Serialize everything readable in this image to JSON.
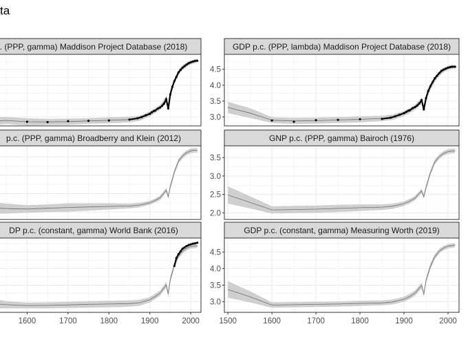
{
  "page": {
    "title_fragment": "ta"
  },
  "chart_data": [
    {
      "type": "line",
      "panel": "left",
      "title": ". (PPP, gamma) Maddison Project Database (2018)",
      "xlim": [
        1500,
        2025
      ],
      "xticks": [
        1600,
        1700,
        1800,
        1900,
        2000
      ],
      "show_xticks": false,
      "ylim": [
        2.72,
        4.97
      ],
      "yticks": [],
      "grid": true,
      "band_x": [
        1500,
        1550,
        1600,
        1650,
        1700,
        1750,
        1800,
        1850,
        1875,
        1900,
        1913,
        1925,
        1940,
        1945,
        1950,
        1960,
        1970,
        1980,
        1990,
        2000,
        2010,
        2016
      ],
      "band_lo": [
        2.74,
        2.78,
        2.74,
        2.75,
        2.76,
        2.79,
        2.8,
        2.83,
        2.88,
        3.02,
        3.12,
        3.22,
        3.48,
        3.18,
        3.62,
        4.05,
        4.32,
        4.48,
        4.58,
        4.65,
        4.69,
        4.7
      ],
      "band_hi": [
        3.0,
        3.0,
        2.96,
        2.94,
        2.95,
        2.96,
        2.99,
        3.01,
        3.04,
        3.18,
        3.28,
        3.38,
        3.66,
        3.36,
        3.8,
        4.22,
        4.48,
        4.63,
        4.72,
        4.78,
        4.82,
        4.83
      ],
      "obs_x": [
        1500,
        1600,
        1650,
        1700,
        1750,
        1800,
        1850,
        1870,
        1880,
        1890,
        1900,
        1905,
        1910,
        1913,
        1920,
        1925,
        1930,
        1935,
        1940,
        1945,
        1950,
        1955,
        1960,
        1965,
        1970,
        1975,
        1980,
        1985,
        1990,
        1995,
        2000,
        2005,
        2010,
        2016
      ],
      "obs_y": [
        2.89,
        2.85,
        2.84,
        2.87,
        2.88,
        2.89,
        2.92,
        2.96,
        3.0,
        3.05,
        3.1,
        3.15,
        3.19,
        3.2,
        3.27,
        3.3,
        3.35,
        3.42,
        3.56,
        3.27,
        3.71,
        3.95,
        4.13,
        4.26,
        4.4,
        4.48,
        4.55,
        4.6,
        4.65,
        4.69,
        4.72,
        4.74,
        4.76,
        4.77
      ]
    },
    {
      "type": "line",
      "panel": "right",
      "title": "GDP p.c. (PPP, lambda) Maddison Project Database (2018)",
      "xlim": [
        1492,
        2025
      ],
      "xticks": [
        1500,
        1600,
        1700,
        1800,
        1900,
        2000
      ],
      "show_xticks": false,
      "ylim": [
        2.72,
        4.97
      ],
      "yticks": [
        3.0,
        3.5,
        4.0,
        4.5
      ],
      "grid": true,
      "band_x": [
        1500,
        1550,
        1600,
        1650,
        1700,
        1750,
        1800,
        1850,
        1875,
        1900,
        1913,
        1925,
        1940,
        1945,
        1950,
        1960,
        1970,
        1980,
        1990,
        2000,
        2010,
        2016
      ],
      "band_lo": [
        3.12,
        2.97,
        2.81,
        2.78,
        2.79,
        2.81,
        2.83,
        2.87,
        2.91,
        3.03,
        3.12,
        3.22,
        3.43,
        3.16,
        3.5,
        3.85,
        4.1,
        4.28,
        4.4,
        4.48,
        4.52,
        4.52
      ],
      "band_hi": [
        3.48,
        3.28,
        2.99,
        2.97,
        2.98,
        3.0,
        3.02,
        3.04,
        3.08,
        3.19,
        3.28,
        3.38,
        3.62,
        3.33,
        3.68,
        4.02,
        4.26,
        4.43,
        4.55,
        4.62,
        4.64,
        4.64
      ],
      "obs_x": [
        1600,
        1650,
        1700,
        1750,
        1800,
        1850,
        1870,
        1880,
        1890,
        1900,
        1905,
        1910,
        1913,
        1920,
        1925,
        1930,
        1935,
        1940,
        1945,
        1950,
        1955,
        1960,
        1965,
        1970,
        1975,
        1980,
        1985,
        1990,
        1995,
        2000,
        2005,
        2010,
        2016
      ],
      "obs_y": [
        2.89,
        2.85,
        2.9,
        2.91,
        2.93,
        2.94,
        2.98,
        3.02,
        3.07,
        3.12,
        3.16,
        3.2,
        3.21,
        3.28,
        3.31,
        3.36,
        3.43,
        3.53,
        3.24,
        3.59,
        3.82,
        3.97,
        4.1,
        4.22,
        4.3,
        4.38,
        4.45,
        4.49,
        4.52,
        4.55,
        4.57,
        4.58,
        4.58
      ]
    },
    {
      "type": "line",
      "panel": "left",
      "title": "p.c. (PPP, gamma) Broadberry and Klein (2012)",
      "xlim": [
        1500,
        2025
      ],
      "xticks": [
        1600,
        1700,
        1800,
        1900,
        2000
      ],
      "show_xticks": false,
      "ylim": [
        1.8,
        3.8
      ],
      "yticks": [],
      "grid": true,
      "band_x": [
        1500,
        1550,
        1600,
        1650,
        1700,
        1750,
        1800,
        1850,
        1875,
        1900,
        1913,
        1925,
        1940,
        1945,
        1950,
        1960,
        1970,
        1980,
        1990,
        2000,
        2010,
        2016
      ],
      "band_lo": [
        1.95,
        1.96,
        1.98,
        2.0,
        2.01,
        2.04,
        2.07,
        2.1,
        2.13,
        2.2,
        2.26,
        2.33,
        2.53,
        2.36,
        2.62,
        3.02,
        3.32,
        3.46,
        3.55,
        3.6,
        3.62,
        3.62
      ],
      "band_hi": [
        2.3,
        2.23,
        2.19,
        2.21,
        2.24,
        2.24,
        2.24,
        2.23,
        2.25,
        2.31,
        2.37,
        2.45,
        2.66,
        2.48,
        2.76,
        3.16,
        3.45,
        3.59,
        3.68,
        3.73,
        3.74,
        3.74
      ],
      "obs_x": [],
      "obs_y": []
    },
    {
      "type": "line",
      "panel": "right",
      "title": "GNP p.c. (PPP, gamma) Bairoch (1976)",
      "xlim": [
        1492,
        2025
      ],
      "xticks": [
        1500,
        1600,
        1700,
        1800,
        1900,
        2000
      ],
      "show_xticks": false,
      "ylim": [
        1.82,
        3.82
      ],
      "yticks": [
        2.0,
        2.5,
        3.0,
        3.5
      ],
      "grid": true,
      "band_x": [
        1500,
        1550,
        1600,
        1650,
        1700,
        1750,
        1800,
        1850,
        1875,
        1900,
        1913,
        1925,
        1940,
        1945,
        1950,
        1960,
        1970,
        1980,
        1990,
        2000,
        2010,
        2016
      ],
      "band_lo": [
        2.25,
        2.12,
        1.98,
        1.99,
        2.0,
        2.02,
        2.05,
        2.08,
        2.11,
        2.19,
        2.26,
        2.34,
        2.53,
        2.38,
        2.62,
        3.02,
        3.32,
        3.46,
        3.55,
        3.6,
        3.62,
        3.62
      ],
      "band_hi": [
        2.72,
        2.45,
        2.18,
        2.19,
        2.2,
        2.22,
        2.23,
        2.23,
        2.25,
        2.31,
        2.38,
        2.46,
        2.66,
        2.5,
        2.76,
        3.16,
        3.45,
        3.59,
        3.68,
        3.73,
        3.74,
        3.74
      ],
      "obs_x": [],
      "obs_y": []
    },
    {
      "type": "line",
      "panel": "left",
      "title": "DP p.c. (constant, gamma) World Bank (2016)",
      "xlim": [
        1500,
        2025
      ],
      "xticks": [
        1600,
        1700,
        1800,
        1900,
        2000
      ],
      "show_xticks": true,
      "ylim": [
        2.68,
        4.92
      ],
      "yticks": [],
      "grid": true,
      "band_x": [
        1500,
        1550,
        1600,
        1650,
        1700,
        1750,
        1800,
        1850,
        1875,
        1900,
        1913,
        1925,
        1940,
        1945,
        1950,
        1960,
        1970,
        1980,
        1990,
        2000,
        2010,
        2016
      ],
      "band_lo": [
        2.8,
        2.8,
        2.8,
        2.8,
        2.81,
        2.82,
        2.83,
        2.85,
        2.88,
        2.98,
        3.08,
        3.18,
        3.42,
        3.15,
        3.58,
        4.02,
        4.3,
        4.45,
        4.55,
        4.6,
        4.62,
        4.62
      ],
      "band_hi": [
        3.12,
        3.02,
        2.97,
        2.98,
        3.0,
        3.02,
        3.03,
        3.04,
        3.06,
        3.14,
        3.24,
        3.34,
        3.6,
        3.32,
        3.76,
        4.2,
        4.46,
        4.6,
        4.68,
        4.73,
        4.75,
        4.75
      ],
      "obs_x": [
        1960,
        1965,
        1970,
        1975,
        1980,
        1985,
        1990,
        1995,
        2000,
        2005,
        2010,
        2016
      ],
      "obs_y": [
        4.08,
        4.32,
        4.43,
        4.52,
        4.6,
        4.64,
        4.68,
        4.71,
        4.73,
        4.75,
        4.76,
        4.78
      ]
    },
    {
      "type": "line",
      "panel": "right",
      "title": "GDP p.c. (constant, gamma) Measuring Worth (2019)",
      "xlim": [
        1492,
        2025
      ],
      "xticks": [
        1500,
        1600,
        1700,
        1800,
        1900,
        2000
      ],
      "show_xticks": true,
      "ylim": [
        2.68,
        4.92
      ],
      "yticks": [
        3.0,
        3.5,
        4.0,
        4.5
      ],
      "grid": true,
      "band_x": [
        1500,
        1550,
        1600,
        1650,
        1700,
        1750,
        1800,
        1850,
        1875,
        1900,
        1913,
        1925,
        1940,
        1945,
        1950,
        1960,
        1970,
        1980,
        1990,
        2000,
        2010,
        2016
      ],
      "band_lo": [
        3.12,
        2.98,
        2.82,
        2.83,
        2.84,
        2.85,
        2.87,
        2.89,
        2.92,
        3.0,
        3.08,
        3.18,
        3.4,
        3.14,
        3.55,
        3.98,
        4.28,
        4.45,
        4.55,
        4.61,
        4.63,
        4.64
      ],
      "band_hi": [
        3.62,
        3.32,
        2.98,
        2.99,
        3.0,
        3.01,
        3.03,
        3.04,
        3.07,
        3.15,
        3.24,
        3.34,
        3.58,
        3.31,
        3.73,
        4.16,
        4.44,
        4.6,
        4.69,
        4.74,
        4.76,
        4.77
      ],
      "obs_x": [],
      "obs_y": []
    }
  ]
}
